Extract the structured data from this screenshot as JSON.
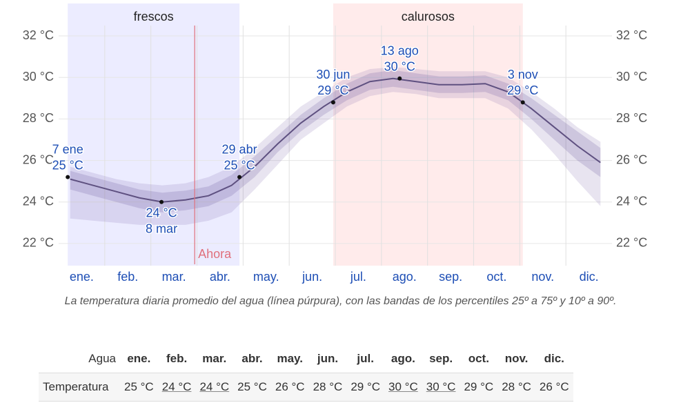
{
  "chart_data": {
    "type": "line",
    "categories": [
      "ene.",
      null,
      "feb.",
      null,
      "mar.",
      null,
      "abr.",
      null,
      "may.",
      null,
      "jun.",
      null,
      "jul.",
      null,
      "ago.",
      null,
      "sep.",
      null,
      "oct.",
      null,
      "nov.",
      null,
      "dic.",
      null
    ],
    "values": [
      25.1,
      24.8,
      24.5,
      24.2,
      24.0,
      24.1,
      24.3,
      24.8,
      25.7,
      26.8,
      27.8,
      28.6,
      29.3,
      29.8,
      29.95,
      29.8,
      29.65,
      29.65,
      29.7,
      29.3,
      28.5,
      27.6,
      26.7,
      25.9
    ],
    "color": "#5e5080",
    "bands": [
      {
        "low": [
          23.2,
          23.1,
          23.0,
          22.9,
          22.9,
          22.9,
          23.1,
          23.5,
          24.6,
          25.8,
          27.0,
          27.8,
          28.6,
          29.1,
          29.3,
          29.2,
          29.0,
          29.0,
          29.0,
          28.5,
          27.5,
          26.3,
          25.0,
          23.8
        ],
        "high": [
          25.7,
          25.4,
          25.1,
          24.9,
          24.8,
          24.9,
          25.2,
          25.7,
          26.6,
          27.6,
          28.6,
          29.3,
          30.0,
          30.4,
          30.5,
          30.4,
          30.3,
          30.3,
          30.3,
          30.0,
          29.3,
          28.5,
          27.6,
          26.9
        ],
        "color": "rgba(110,90,160,0.16)"
      },
      {
        "low": [
          24.6,
          24.3,
          24.0,
          23.7,
          23.5,
          23.6,
          23.8,
          24.3,
          25.2,
          26.4,
          27.4,
          28.2,
          28.9,
          29.4,
          29.55,
          29.4,
          29.25,
          29.25,
          29.3,
          28.9,
          28.0,
          27.0,
          26.0,
          25.2
        ],
        "high": [
          25.5,
          25.2,
          24.9,
          24.6,
          24.45,
          24.55,
          24.75,
          25.3,
          26.2,
          27.2,
          28.2,
          29.0,
          29.7,
          30.2,
          30.35,
          30.2,
          30.05,
          30.05,
          30.1,
          29.7,
          29.0,
          28.2,
          27.4,
          26.6
        ],
        "color": "rgba(110,90,160,0.22)"
      }
    ],
    "ylim": [
      21,
      32.5
    ],
    "yticks": [
      {
        "value": 22,
        "label": "22 °C"
      },
      {
        "value": 24,
        "label": "24 °C"
      },
      {
        "value": 26,
        "label": "26 °C"
      },
      {
        "value": 28,
        "label": "28 °C"
      },
      {
        "value": 30,
        "label": "30 °C"
      },
      {
        "value": 32,
        "label": "32 °C"
      }
    ],
    "grid": true,
    "annotations": [
      {
        "date": "7 ene",
        "value": 25.2,
        "value_label": "25 °C"
      },
      {
        "date": "8 mar",
        "value": 24.0,
        "value_label": "24 °C"
      },
      {
        "date": "29 abr",
        "value": 25.2,
        "value_label": "25 °C"
      },
      {
        "date": "30 jun",
        "value": 28.8,
        "value_label": "29 °C"
      },
      {
        "date": "13 ago",
        "value": 29.95,
        "value_label": "30 °C"
      },
      {
        "date": "3 nov",
        "value": 28.8,
        "value_label": "29 °C"
      }
    ],
    "regions": [
      {
        "label": "frescos",
        "color": "rgba(120,120,255,0.14)"
      },
      {
        "label": "calurosos",
        "color": "rgba(255,120,120,0.15)"
      }
    ],
    "now": {
      "label": "Ahora",
      "x": 2.95,
      "color": "#e0707c"
    },
    "caption": "La temperatura diaria promedio del agua (línea púrpura), con las bandas de los percentiles 25º a 75º y 10º a 90º."
  },
  "table": {
    "header": [
      "Agua",
      "ene.",
      "feb.",
      "mar.",
      "abr.",
      "may.",
      "jun.",
      "jul.",
      "ago.",
      "sep.",
      "oct.",
      "nov.",
      "dic."
    ],
    "rows": [
      [
        "Temperatura",
        "25 °C",
        "24 °C",
        "24 °C",
        "25 °C",
        "26 °C",
        "28 °C",
        "29 °C",
        "30 °C",
        "30 °C",
        "29 °C",
        "28 °C",
        "26 °C"
      ]
    ],
    "underlined_columns": [
      2,
      3,
      8,
      9
    ]
  }
}
